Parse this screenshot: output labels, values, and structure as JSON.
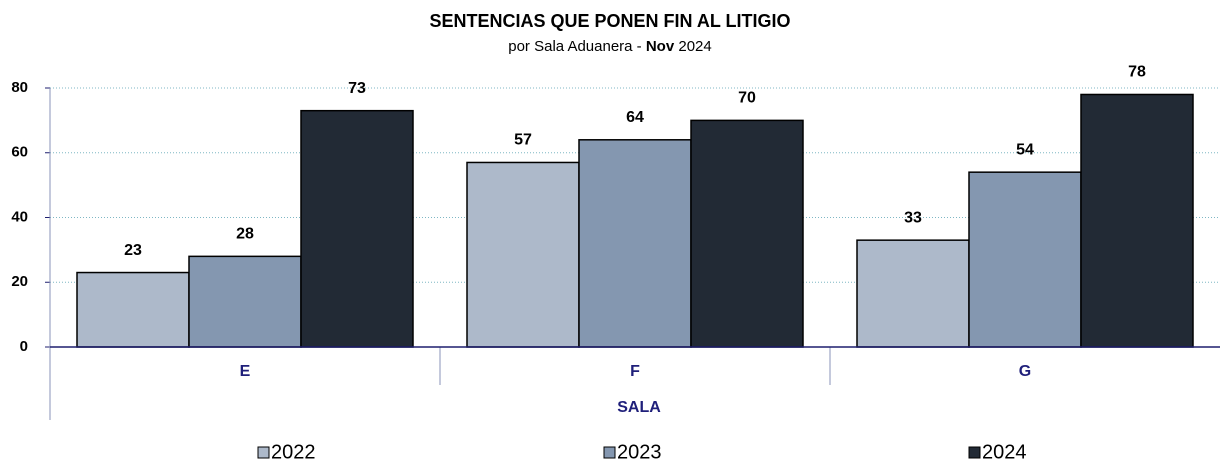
{
  "chart_data": {
    "type": "bar",
    "title": "SENTENCIAS QUE PONEN FIN AL LITIGIO",
    "subtitle": [
      "por Sala Aduanera - ",
      "Nov",
      " 2024"
    ],
    "x_label": "SALA",
    "categories": [
      "E",
      "F",
      "G"
    ],
    "series": [
      {
        "name": "2022",
        "color": "#adb9ca",
        "values": [
          23,
          57,
          33
        ]
      },
      {
        "name": "2023",
        "color": "#8497b0",
        "values": [
          28,
          64,
          54
        ]
      },
      {
        "name": "2024",
        "color": "#222a35",
        "values": [
          73,
          70,
          78
        ]
      }
    ],
    "ylim": [
      0,
      80
    ],
    "yticks": [
      0,
      20,
      40,
      60,
      80
    ],
    "grid": true,
    "legend": "bottom"
  }
}
